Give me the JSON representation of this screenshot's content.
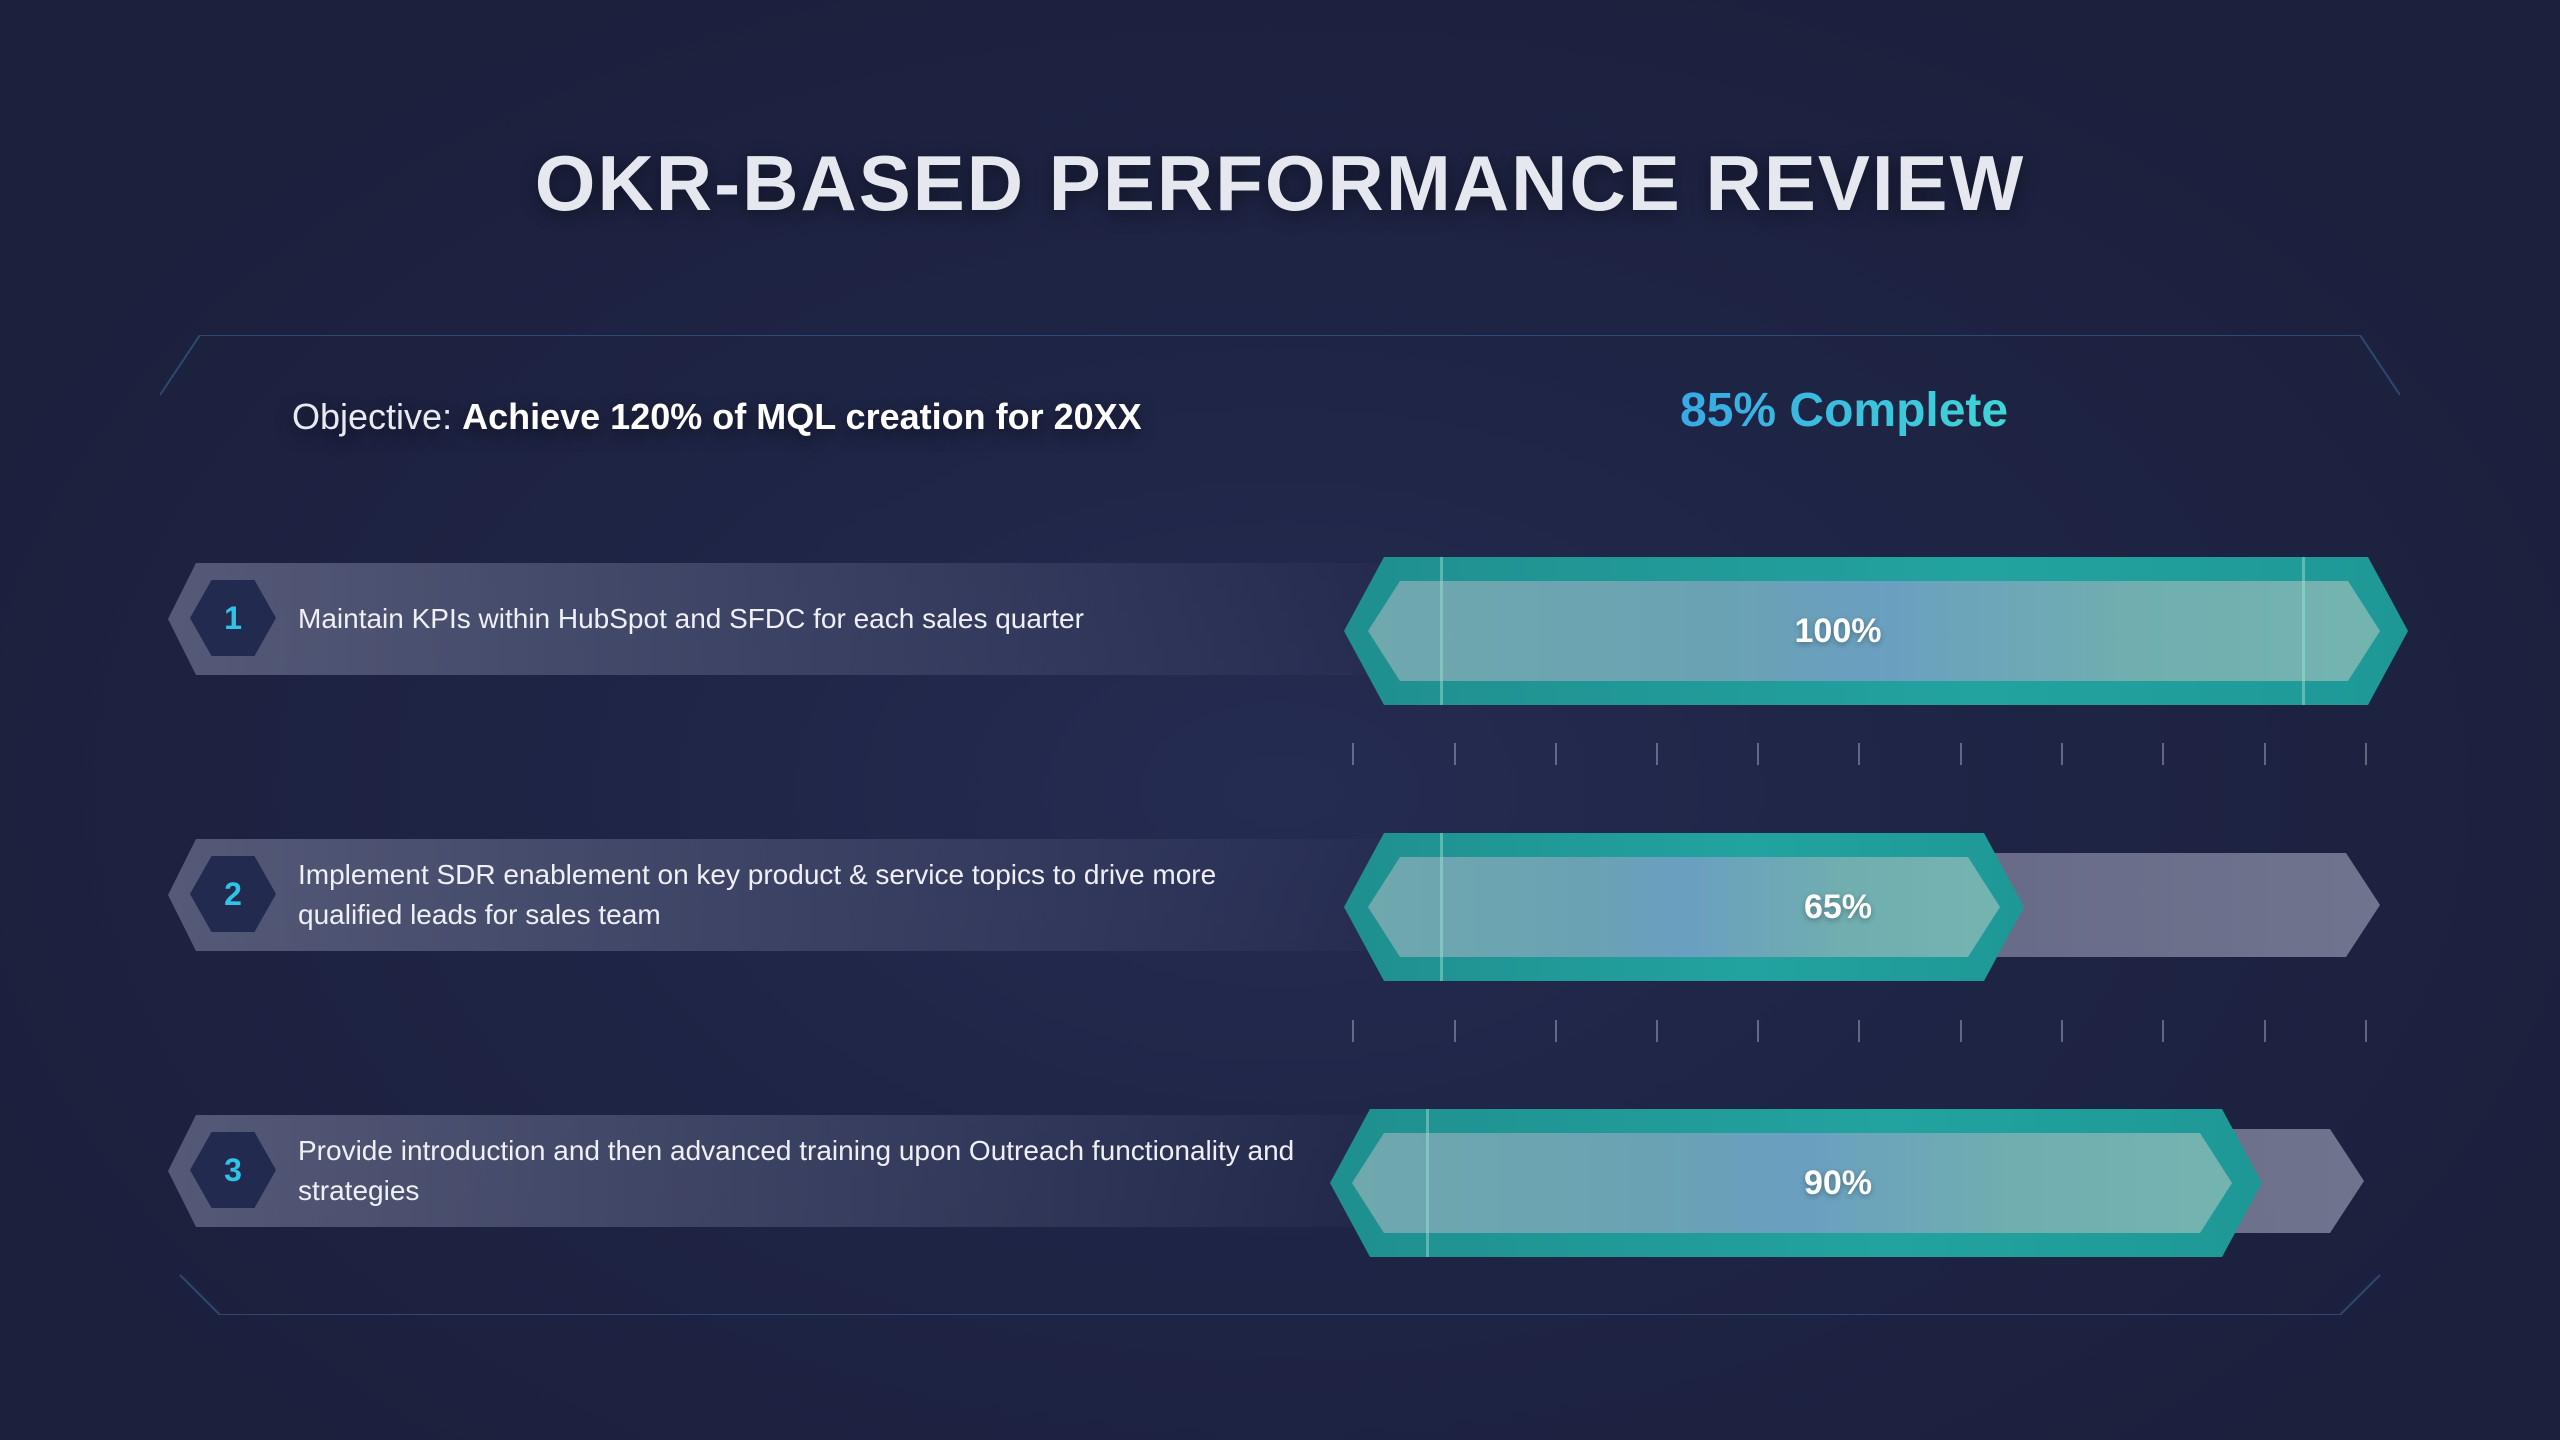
{
  "title": "OKR-BASED PERFORMANCE REVIEW",
  "objective": {
    "prefix": "Objective:",
    "goal": "Achieve 120% of MQL creation for 20XX"
  },
  "overall_progress": {
    "label": "85% Complete",
    "value": 85
  },
  "accent_colors": {
    "cyan": "#2fc3e6",
    "teal": "#22a3a0",
    "track": "#8c8fa8"
  },
  "key_results": [
    {
      "number": "1",
      "text": "Maintain KPIs within HubSpot and SFDC for each sales quarter",
      "percent_label": "100%",
      "progress": 100
    },
    {
      "number": "2",
      "text": "Implement SDR enablement on key product & service topics to drive more qualified leads for sales team",
      "percent_label": "65%",
      "progress": 65
    },
    {
      "number": "3",
      "text": "Provide introduction and then advanced training upon Outreach functionality and strategies",
      "percent_label": "90%",
      "progress": 90
    }
  ]
}
